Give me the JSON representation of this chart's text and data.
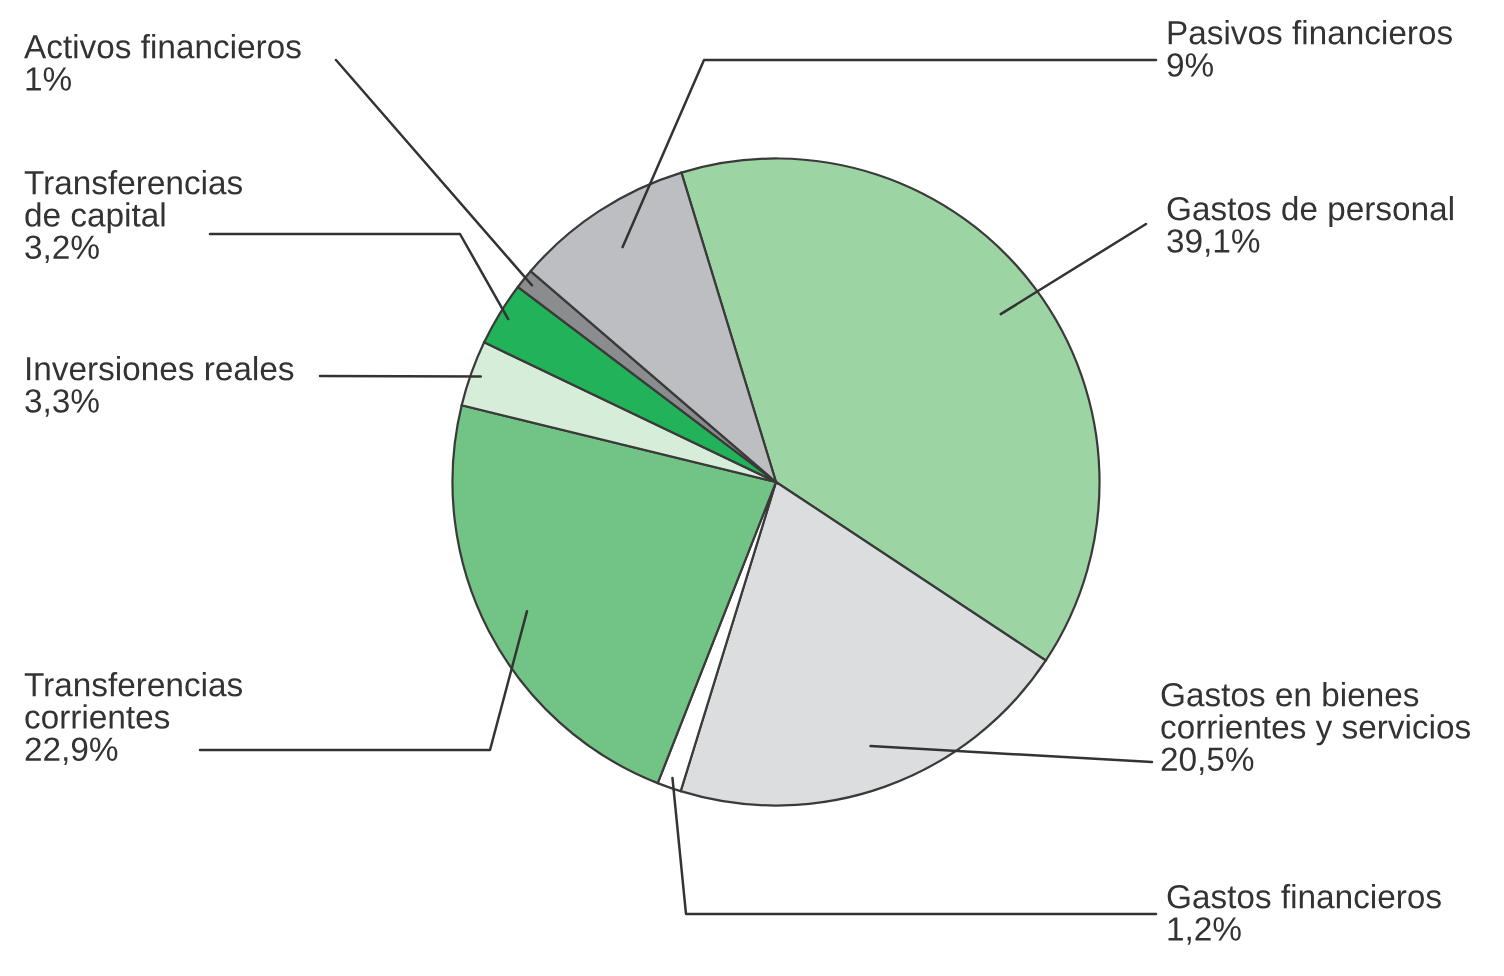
{
  "chart_data": {
    "type": "pie",
    "categories": [
      "Gastos de personal",
      "Gastos en bienes corrientes y servicios",
      "Gastos financieros",
      "Transferencias corrientes",
      "Inversiones reales",
      "Transferencias de capital",
      "Activos financieros",
      "Pasivos financieros"
    ],
    "values": [
      39.1,
      20.5,
      1.2,
      22.9,
      3.3,
      3.2,
      1,
      9
    ],
    "colors": [
      "#9dd4a3",
      "#dcdddf",
      "#ffffff",
      "#72c486",
      "#d6eed9",
      "#22b25a",
      "#8a8c8e",
      "#bdbec1"
    ],
    "value_labels": [
      "39,1%",
      "20,5%",
      "1,2%",
      "22,9%",
      "3,3%",
      "3,2%",
      "1%",
      "9%"
    ]
  }
}
